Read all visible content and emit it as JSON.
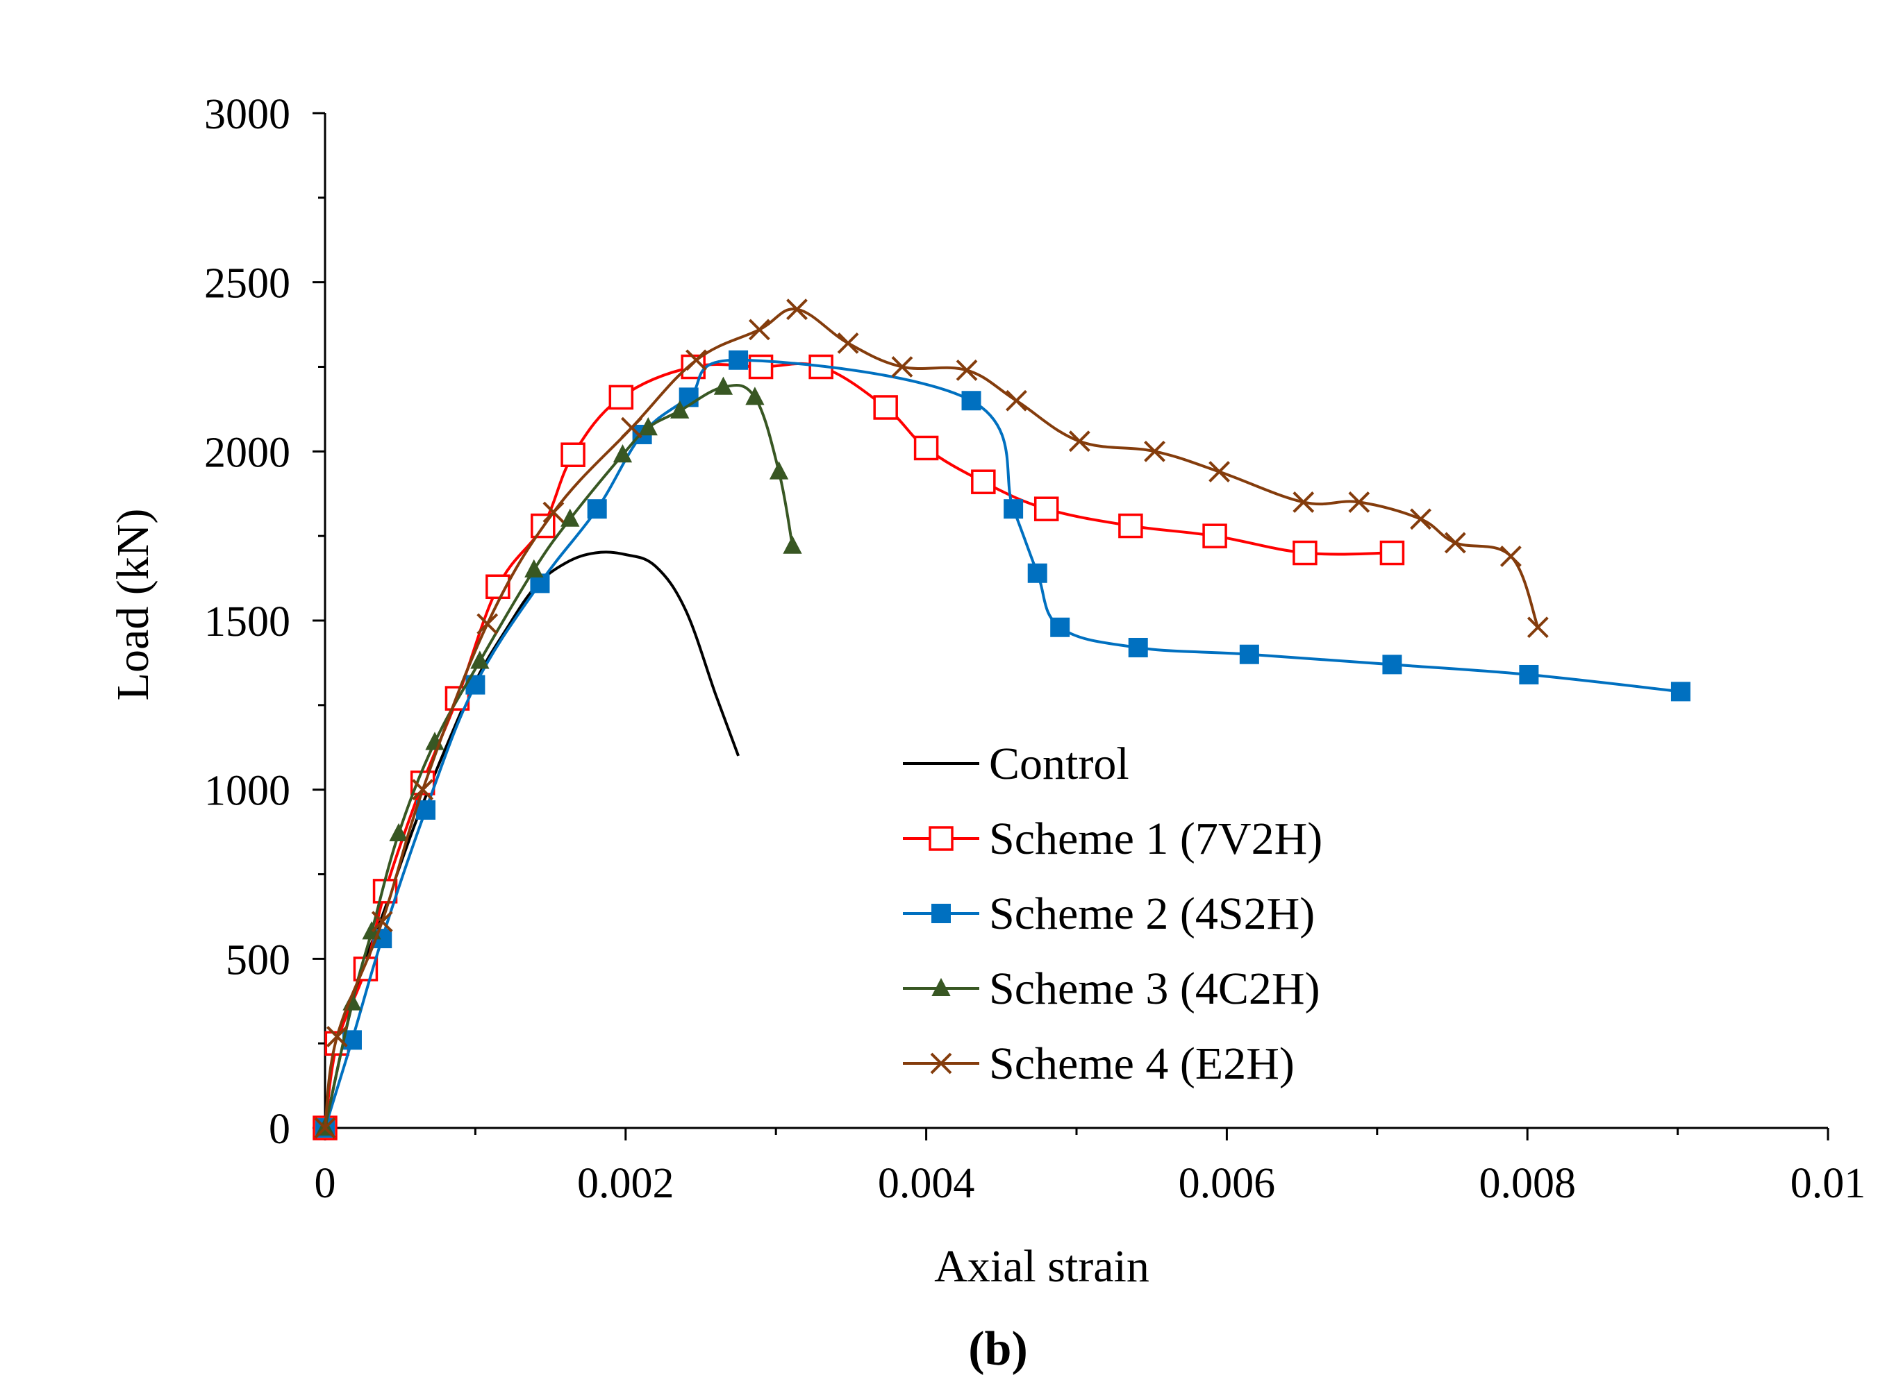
{
  "chart_data": {
    "type": "line",
    "title": "",
    "xlabel": "Axial strain",
    "ylabel": "Load (kN)",
    "xlim": [
      0,
      0.01
    ],
    "ylim": [
      0,
      3000
    ],
    "x_ticks": [
      0,
      0.002,
      0.004,
      0.006,
      0.008,
      0.01
    ],
    "x_tick_labels": [
      "0",
      "0.002",
      "0.004",
      "0.006",
      "0.008",
      "0.01"
    ],
    "y_ticks": [
      0,
      500,
      1000,
      1500,
      2000,
      2500,
      3000
    ],
    "y_tick_labels": [
      "0",
      "500",
      "1000",
      "1500",
      "2000",
      "2500",
      "3000"
    ],
    "grid": false,
    "legend_position": "center-right",
    "caption": "(b)",
    "series": [
      {
        "name": "Control",
        "color": "#000000",
        "marker": "none",
        "x": [
          0,
          0.0002,
          0.0004,
          0.0006,
          0.0008,
          0.001,
          0.0012,
          0.0014,
          0.0016,
          0.0018,
          0.002,
          0.0022,
          0.0024,
          0.0026,
          0.00275
        ],
        "y": [
          0,
          400,
          650,
          900,
          1120,
          1320,
          1470,
          1600,
          1670,
          1700,
          1695,
          1660,
          1530,
          1280,
          1100
        ]
      },
      {
        "name": "Scheme 1 (7V2H)",
        "color": "#ff0000",
        "marker": "open-square",
        "x": [
          0,
          8e-05,
          0.00027,
          0.0004,
          0.00065,
          0.00088,
          0.00115,
          0.00145,
          0.00165,
          0.00197,
          0.00245,
          0.0029,
          0.0033,
          0.00373,
          0.004,
          0.00438,
          0.0048,
          0.00536,
          0.00592,
          0.00652,
          0.0071
        ],
        "y": [
          0,
          250,
          470,
          700,
          1020,
          1270,
          1600,
          1780,
          1990,
          2160,
          2250,
          2250,
          2250,
          2130,
          2010,
          1910,
          1830,
          1780,
          1750,
          1700,
          1700
        ]
      },
      {
        "name": "Scheme 2 (4S2H)",
        "color": "#0070c0",
        "marker": "filled-square",
        "x": [
          0,
          0.00018,
          0.00038,
          0.00067,
          0.001,
          0.00143,
          0.00181,
          0.00211,
          0.00242,
          0.00275,
          0.0043,
          0.00458,
          0.00474,
          0.00489,
          0.00541,
          0.00615,
          0.0071,
          0.00801,
          0.00902
        ],
        "y": [
          0,
          260,
          560,
          940,
          1310,
          1610,
          1830,
          2050,
          2160,
          2270,
          2150,
          1830,
          1640,
          1480,
          1420,
          1400,
          1370,
          1340,
          1290
        ]
      },
      {
        "name": "Scheme 3 (4C2H)",
        "color": "#385723",
        "marker": "filled-triangle",
        "x": [
          0,
          0.00018,
          0.00031,
          0.00049,
          0.00073,
          0.00103,
          0.00139,
          0.00163,
          0.00198,
          0.00215,
          0.00236,
          0.00265,
          0.00286,
          0.00302,
          0.00311
        ],
        "y": [
          0,
          370,
          580,
          870,
          1140,
          1380,
          1650,
          1800,
          1990,
          2070,
          2120,
          2190,
          2160,
          1940,
          1720
        ]
      },
      {
        "name": "Scheme 4 (E2H)",
        "color": "#843c0c",
        "marker": "x",
        "x": [
          0,
          8e-05,
          0.00038,
          0.00065,
          0.00108,
          0.00152,
          0.00204,
          0.00247,
          0.00289,
          0.00314,
          0.00348,
          0.00384,
          0.00427,
          0.0046,
          0.00502,
          0.00552,
          0.00595,
          0.00651,
          0.00688,
          0.00729,
          0.00752,
          0.00789,
          0.00807
        ],
        "y": [
          0,
          270,
          610,
          1000,
          1490,
          1820,
          2070,
          2270,
          2360,
          2420,
          2320,
          2250,
          2240,
          2150,
          2030,
          2000,
          1940,
          1850,
          1850,
          1800,
          1730,
          1690,
          1480
        ]
      }
    ]
  }
}
